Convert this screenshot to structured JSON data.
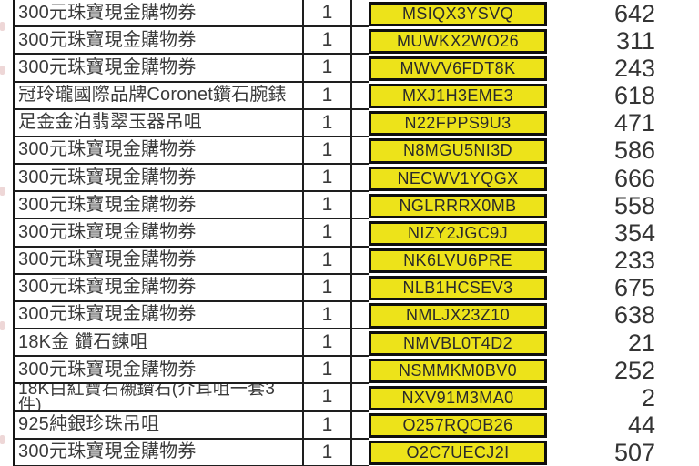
{
  "colors": {
    "code_highlight": "#EDE31A",
    "border": "#1e1e1e",
    "text": "#3a3a3a"
  },
  "table": {
    "rows": [
      {
        "item": "300元珠寶現金購物券",
        "qty": "1",
        "code": "MSIQX3YSVQ",
        "count": "642",
        "wrap": false
      },
      {
        "item": "300元珠寶現金購物券",
        "qty": "1",
        "code": "MUWKX2WO26",
        "count": "311",
        "wrap": false
      },
      {
        "item": "300元珠寶現金購物券",
        "qty": "1",
        "code": "MWVV6FDT8K",
        "count": "243",
        "wrap": false
      },
      {
        "item": "冠玲瓏國際品牌Coronet鑽石腕錶",
        "qty": "1",
        "code": "MXJ1H3EME3",
        "count": "618",
        "wrap": false
      },
      {
        "item": "足金金泊翡翠玉器吊咀",
        "qty": "1",
        "code": "N22FPPS9U3",
        "count": "471",
        "wrap": false
      },
      {
        "item": "300元珠寶現金購物券",
        "qty": "1",
        "code": "N8MGU5NI3D",
        "count": "586",
        "wrap": false
      },
      {
        "item": "300元珠寶現金購物券",
        "qty": "1",
        "code": "NECWV1YQGX",
        "count": "666",
        "wrap": false
      },
      {
        "item": "300元珠寶現金購物券",
        "qty": "1",
        "code": "NGLRRRX0MB",
        "count": "558",
        "wrap": false
      },
      {
        "item": "300元珠寶現金購物券",
        "qty": "1",
        "code": "NIZY2JGC9J",
        "count": "354",
        "wrap": false
      },
      {
        "item": "300元珠寶現金購物券",
        "qty": "1",
        "code": "NK6LVU6PRE",
        "count": "233",
        "wrap": false
      },
      {
        "item": "300元珠寶現金購物券",
        "qty": "1",
        "code": "NLB1HCSEV3",
        "count": "675",
        "wrap": false
      },
      {
        "item": "300元珠寶現金購物券",
        "qty": "1",
        "code": "NMLJX23Z10",
        "count": "638",
        "wrap": false
      },
      {
        "item": "18K金 鑽石鍊咀",
        "qty": "1",
        "code": "NMVBL0T4D2",
        "count": "21",
        "wrap": false
      },
      {
        "item": "300元珠寶現金購物券",
        "qty": "1",
        "code": "NSMMKM0BV0",
        "count": "252",
        "wrap": false
      },
      {
        "item": "18K白紅寶石襯鑽石(介耳咀一套3\n件)",
        "qty": "1",
        "code": "NXV91M3MA0",
        "count": "2",
        "wrap": true
      },
      {
        "item": "925純銀珍珠吊咀",
        "qty": "1",
        "code": "O257RQOB26",
        "count": "44",
        "wrap": false
      },
      {
        "item": "300元珠寶現金購物券",
        "qty": "1",
        "code": "O2C7UECJ2I",
        "count": "507",
        "wrap": false
      }
    ]
  }
}
